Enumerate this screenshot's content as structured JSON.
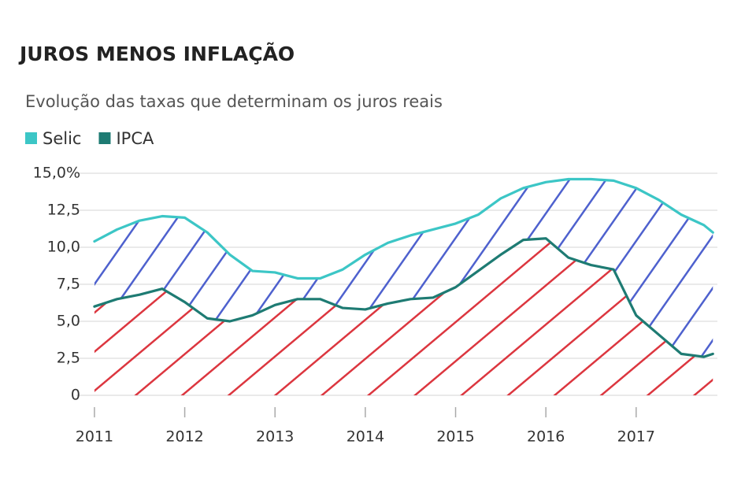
{
  "chart_data": {
    "type": "line",
    "title": "JUROS MENOS INFLAÇÃO",
    "subtitle": "Evolução das taxas que determinam os juros reais",
    "x": [
      2011,
      2011.25,
      2011.5,
      2011.75,
      2012,
      2012.25,
      2012.5,
      2012.75,
      2013,
      2013.25,
      2013.5,
      2013.75,
      2014,
      2014.25,
      2014.5,
      2014.75,
      2015,
      2015.25,
      2015.5,
      2015.75,
      2016,
      2016.25,
      2016.5,
      2016.75,
      2017,
      2017.25,
      2017.5,
      2017.75,
      2017.85
    ],
    "series": [
      {
        "name": "Selic",
        "color": "#3cc6c6",
        "values": [
          10.4,
          11.2,
          11.8,
          12.1,
          12.0,
          11.0,
          9.5,
          8.4,
          8.3,
          7.9,
          7.9,
          8.5,
          9.5,
          10.3,
          10.8,
          11.2,
          11.6,
          12.2,
          13.3,
          14.0,
          14.4,
          14.6,
          14.6,
          14.5,
          14.0,
          13.2,
          12.2,
          11.5,
          11.0
        ]
      },
      {
        "name": "IPCA",
        "color": "#1e7b73",
        "values": [
          6.0,
          6.5,
          6.8,
          7.2,
          6.3,
          5.2,
          5.0,
          5.4,
          6.1,
          6.5,
          6.5,
          5.9,
          5.8,
          6.2,
          6.5,
          6.6,
          7.3,
          8.4,
          9.5,
          10.5,
          10.6,
          9.3,
          8.8,
          8.5,
          5.4,
          4.1,
          2.8,
          2.6,
          2.8
        ]
      }
    ],
    "xlim": [
      2010.8,
      2017.9
    ],
    "xticks": [
      2011,
      2012,
      2013,
      2014,
      2015,
      2016,
      2017
    ],
    "ylim": [
      0,
      15
    ],
    "yticks": [
      0,
      {
        "value": 2.5,
        "label": "2,5"
      },
      {
        "value": 5,
        "label": "5,0"
      },
      {
        "value": 7.5,
        "label": "7,5"
      },
      {
        "value": 10,
        "label": "10,0"
      },
      {
        "value": 12.5,
        "label": "12,5"
      },
      {
        "value": 15,
        "label": "15,0%"
      }
    ],
    "grid": true
  }
}
